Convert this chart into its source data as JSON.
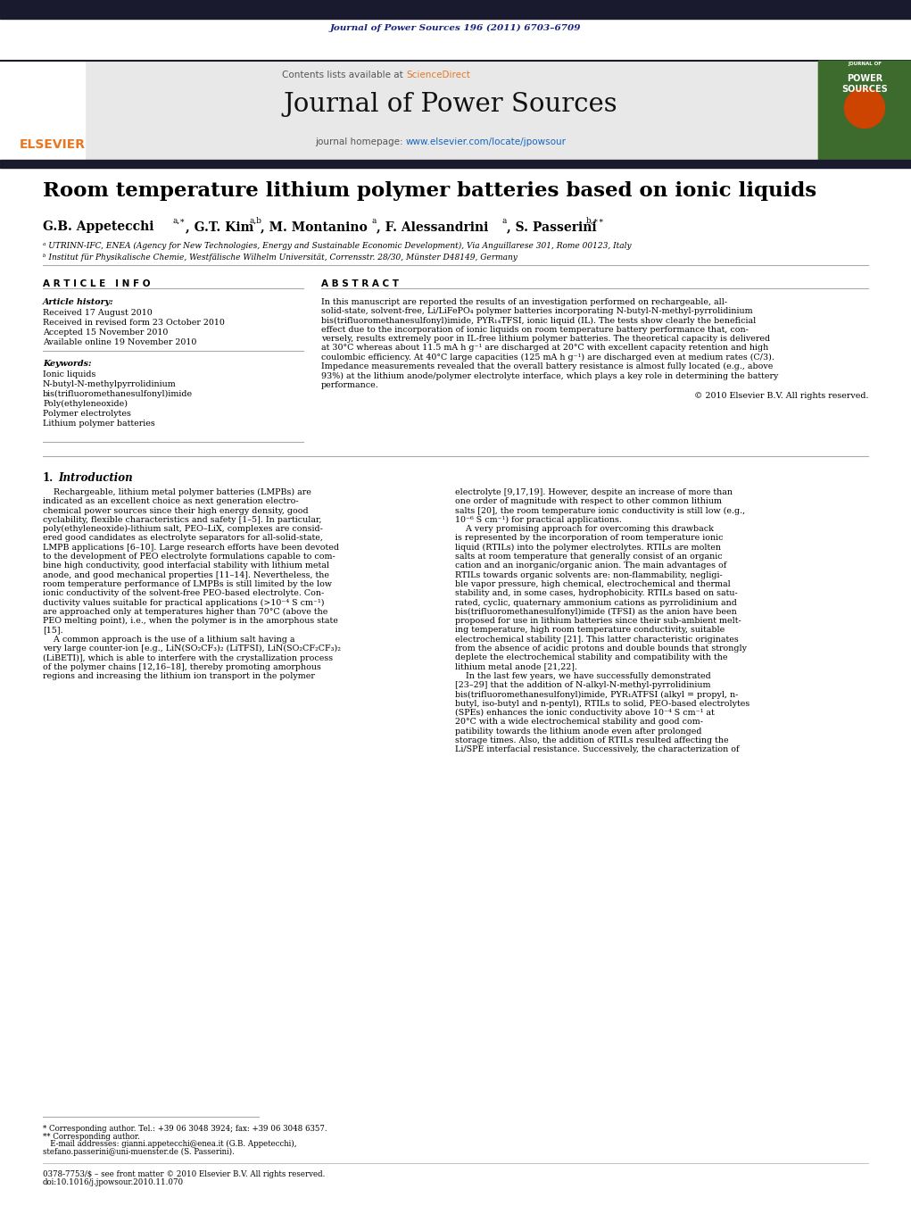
{
  "journal_ref": "Journal of Power Sources 196 (2011) 6703–6709",
  "journal_name": "Journal of Power Sources",
  "contents_text": "Contents lists available at ScienceDirect",
  "homepage_text": "journal homepage: www.elsevier.com/locate/jpowsour",
  "title": "Room temperature lithium polymer batteries based on ionic liquids",
  "affil_a": "ᵃ UTRINN-IFC, ENEA (Agency for New Technologies, Energy and Sustainable Economic Development), Via Anguillarese 301, Rome 00123, Italy",
  "affil_b": "ᵇ Institut für Physikalische Chemie, Westfälische Wilhelm Universität, Corrensstr. 28/30, Münster D48149, Germany",
  "article_info_title": "A R T I C L E   I N F O",
  "article_history_label": "Article history:",
  "received": "Received 17 August 2010",
  "received_revised": "Received in revised form 23 October 2010",
  "accepted": "Accepted 15 November 2010",
  "available": "Available online 19 November 2010",
  "keywords_label": "Keywords:",
  "keywords": [
    "Ionic liquids",
    "N-butyl-N-methylpyrrolidinium",
    "bis(trifluoromethanesulfonyl)imide",
    "Poly(ethyleneoxide)",
    "Polymer electrolytes",
    "Lithium polymer batteries"
  ],
  "abstract_title": "A B S T R A C T",
  "copyright": "© 2010 Elsevier B.V. All rights reserved.",
  "bg_color": "#ffffff",
  "header_bg": "#e8e8e8",
  "dark_bar_color": "#1a1a2e",
  "journal_ref_color": "#1a237e",
  "sciencedirect_color": "#e87722",
  "homepage_link_color": "#1565c0",
  "elsevier_color": "#e87722",
  "title_color": "#000000",
  "body_text_color": "#000000",
  "abstract_lines": [
    "In this manuscript are reported the results of an investigation performed on rechargeable, all-",
    "solid-state, solvent-free, Li/LiFePO₄ polymer batteries incorporating N-butyl-N-methyl-pyrrolidinium",
    "bis(trifluoromethanesulfonyl)imide, PYR₁₄TFSI, ionic liquid (IL). The tests show clearly the beneficial",
    "effect due to the incorporation of ionic liquids on room temperature battery performance that, con-",
    "versely, results extremely poor in IL-free lithium polymer batteries. The theoretical capacity is delivered",
    "at 30°C whereas about 11.5 mA h g⁻¹ are discharged at 20°C with excellent capacity retention and high",
    "coulombic efficiency. At 40°C large capacities (125 mA h g⁻¹) are discharged even at medium rates (C/3).",
    "Impedance measurements revealed that the overall battery resistance is almost fully located (e.g., above",
    "93%) at the lithium anode/polymer electrolyte interface, which plays a key role in determining the battery",
    "performance."
  ],
  "body_col1_lines": [
    "    Rechargeable, lithium metal polymer batteries (LMPBs) are",
    "indicated as an excellent choice as next generation electro-",
    "chemical power sources since their high energy density, good",
    "cyclability, flexible characteristics and safety [1–5]. In particular,",
    "poly(ethyleneoxide)-lithium salt, PEO–LiX, complexes are consid-",
    "ered good candidates as electrolyte separators for all-solid-state,",
    "LMPB applications [6–10]. Large research efforts have been devoted",
    "to the development of PEO electrolyte formulations capable to com-",
    "bine high conductivity, good interfacial stability with lithium metal",
    "anode, and good mechanical properties [11–14]. Nevertheless, the",
    "room temperature performance of LMPBs is still limited by the low",
    "ionic conductivity of the solvent-free PEO-based electrolyte. Con-",
    "ductivity values suitable for practical applications (>10⁻⁴ S cm⁻¹)",
    "are approached only at temperatures higher than 70°C (above the",
    "PEO melting point), i.e., when the polymer is in the amorphous state",
    "[15].",
    "    A common approach is the use of a lithium salt having a",
    "very large counter-ion [e.g., LiN(SO₂CF₃)₂ (LiTFSI), LiN(SO₂CF₂CF₃)₂",
    "(LiBETI)], which is able to interfere with the crystallization process",
    "of the polymer chains [12,16–18], thereby promoting amorphous",
    "regions and increasing the lithium ion transport in the polymer"
  ],
  "body_col2_lines": [
    "electrolyte [9,17,19]. However, despite an increase of more than",
    "one order of magnitude with respect to other common lithium",
    "salts [20], the room temperature ionic conductivity is still low (e.g.,",
    "10⁻⁶ S cm⁻¹) for practical applications.",
    "    A very promising approach for overcoming this drawback",
    "is represented by the incorporation of room temperature ionic",
    "liquid (RTILs) into the polymer electrolytes. RTILs are molten",
    "salts at room temperature that generally consist of an organic",
    "cation and an inorganic/organic anion. The main advantages of",
    "RTILs towards organic solvents are: non-flammability, negligi-",
    "ble vapor pressure, high chemical, electrochemical and thermal",
    "stability and, in some cases, hydrophobicity. RTILs based on satu-",
    "rated, cyclic, quaternary ammonium cations as pyrrolidinium and",
    "bis(trifluoromethanesulfonyl)imide (TFSI) as the anion have been",
    "proposed for use in lithium batteries since their sub-ambient melt-",
    "ing temperature, high room temperature conductivity, suitable",
    "electrochemical stability [21]. This latter characteristic originates",
    "from the absence of acidic protons and double bounds that strongly",
    "deplete the electrochemical stability and compatibility with the",
    "lithium metal anode [21,22].",
    "    In the last few years, we have successfully demonstrated",
    "[23–29] that the addition of N-alkyl-N-methyl-pyrrolidinium",
    "bis(trifluoromethanesulfonyl)imide, PYR₁ATFSI (alkyl = propyl, n-",
    "butyl, iso-butyl and n-pentyl), RTILs to solid, PEO-based electrolytes",
    "(SPEs) enhances the ionic conductivity above 10⁻⁴ S cm⁻¹ at",
    "20°C with a wide electrochemical stability and good com-",
    "patibility towards the lithium anode even after prolonged",
    "storage times. Also, the addition of RTILs resulted affecting the",
    "Li/SPE interfacial resistance. Successively, the characterization of"
  ],
  "footnote_lines": [
    "* Corresponding author. Tel.: +39 06 3048 3924; fax: +39 06 3048 6357.",
    "** Corresponding author.",
    "   E-mail addresses: gianni.appetecchi@enea.it (G.B. Appetecchi),",
    "stefano.passerini@uni-muenster.de (S. Passerini)."
  ],
  "footer_line1": "0378-7753/$ – see front matter © 2010 Elsevier B.V. All rights reserved.",
  "footer_line2": "doi:10.1016/j.jpowsour.2010.11.070"
}
